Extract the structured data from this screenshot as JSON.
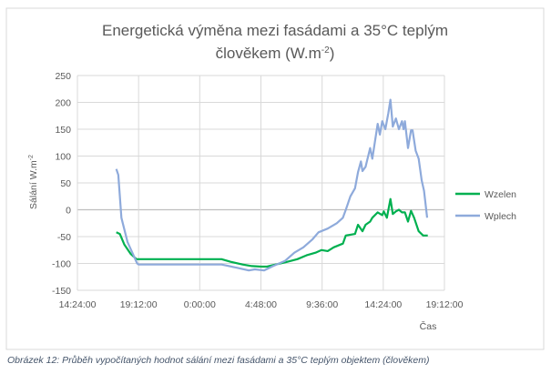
{
  "chart_data": {
    "type": "line",
    "title_line1": "Energetická výměna mezi  fasádami a 35°C teplým",
    "title_line2_main": "člověkem (W.m",
    "title_line2_sup": "-2",
    "title_line2_end": ")",
    "xlabel": "Čas",
    "ylabel": "Sálání W.m",
    "ylabel_sup": "-2",
    "x_unit": "hours since 14:24:00 (day 1)",
    "xlim": [
      0,
      28.8
    ],
    "ylim": [
      -150,
      250
    ],
    "y_ticks": [
      -150,
      -100,
      -50,
      0,
      50,
      100,
      150,
      200,
      250
    ],
    "x_ticks": [
      0,
      4.8,
      9.6,
      14.4,
      19.2,
      24,
      28.8
    ],
    "x_tick_labels": [
      "14:24:00",
      "19:12:00",
      "0:00:00",
      "4:48:00",
      "9:36:00",
      "14:24:00",
      "19:12:00"
    ],
    "grid": true,
    "legend_position": "right",
    "series": [
      {
        "name": "Wzelen",
        "color": "#00b050",
        "x": [
          3.05,
          3.33,
          3.69,
          4.17,
          4.64,
          11.31,
          12.02,
          12.97,
          13.69,
          14.4,
          14.88,
          15.35,
          16.3,
          17.26,
          17.97,
          18.68,
          19.16,
          19.64,
          20.11,
          20.83,
          21.06,
          21.78,
          22.02,
          22.37,
          22.61,
          22.97,
          23.14,
          23.56,
          23.92,
          24.04,
          24.28,
          24.56,
          24.75,
          24.99,
          25.23,
          25.47,
          25.7,
          25.94,
          26.18,
          26.42,
          26.78,
          27.13,
          27.49
        ],
        "values": [
          -42,
          -45,
          -65,
          -82,
          -92,
          -92,
          -97,
          -102,
          -105,
          -106,
          -106,
          -103,
          -98,
          -92,
          -85,
          -80,
          -75,
          -77,
          -70,
          -63,
          -48,
          -45,
          -28,
          -40,
          -28,
          -22,
          -15,
          -5,
          -10,
          -3,
          -15,
          20,
          -8,
          -3,
          0,
          -5,
          -5,
          -22,
          -2,
          -15,
          -40,
          -48,
          -48
        ]
      },
      {
        "name": "Wplech",
        "color": "#8eaadb",
        "x": [
          3.05,
          3.21,
          3.45,
          3.93,
          4.4,
          4.69,
          4.81,
          11.31,
          12.5,
          13.45,
          13.92,
          14.64,
          15.35,
          16.3,
          17.02,
          17.73,
          18.45,
          18.92,
          19.64,
          20.35,
          20.83,
          21.06,
          21.42,
          21.78,
          22.02,
          22.25,
          22.37,
          22.61,
          22.97,
          23.14,
          23.33,
          23.56,
          23.73,
          23.92,
          24.16,
          24.4,
          24.56,
          24.75,
          24.99,
          25.23,
          25.47,
          25.59,
          25.7,
          25.94,
          26.18,
          26.3,
          26.54,
          26.78,
          27.01,
          27.2,
          27.44
        ],
        "values": [
          76,
          65,
          -15,
          -60,
          -85,
          -100,
          -102,
          -102,
          -108,
          -113,
          -111,
          -113,
          -105,
          -95,
          -80,
          -70,
          -55,
          -42,
          -35,
          -25,
          -15,
          0,
          25,
          40,
          70,
          90,
          72,
          80,
          115,
          95,
          125,
          160,
          140,
          165,
          150,
          180,
          205,
          155,
          170,
          150,
          165,
          150,
          165,
          115,
          148,
          148,
          110,
          95,
          55,
          35,
          -15
        ]
      }
    ]
  },
  "caption": "Obrázek 12: Průběh vypočítaných hodnot sálání mezi fasádami a 35°C teplým objektem (člověkem)"
}
